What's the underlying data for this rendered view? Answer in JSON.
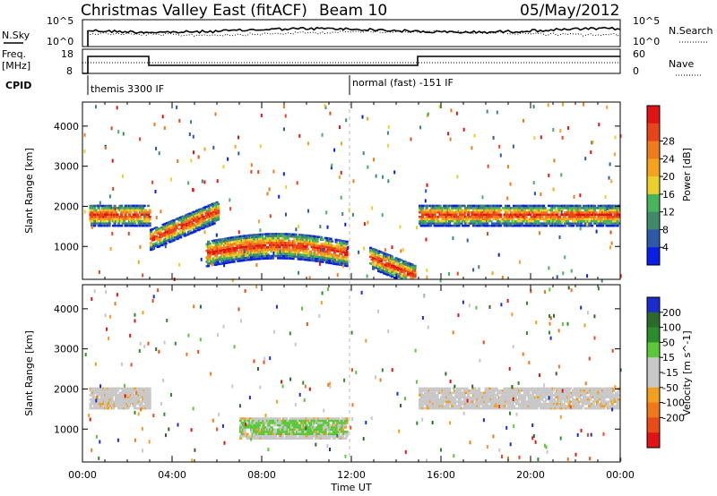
{
  "header": {
    "title": "Christmas Valley East (fitACF)",
    "beam": "Beam 10",
    "date": "05/May/2012"
  },
  "noise_panel": {
    "left_label": "N.Sky",
    "right_label": "N.Search",
    "left_ticks": [
      "10^5",
      "10^0"
    ],
    "right_ticks": [
      "10^5",
      "10^0"
    ]
  },
  "freq_panel": {
    "left_label_1": "Freq.",
    "left_label_2": "[MHz]",
    "right_label": "Nave",
    "left_ticks": [
      "18",
      "8"
    ],
    "right_ticks": [
      "60",
      "0"
    ]
  },
  "cpid": {
    "label": "CPID",
    "modes": [
      "themis 3300 IF",
      "normal (fast) -151 IF"
    ]
  },
  "x_axis": {
    "label": "Time UT",
    "ticks": [
      "00:00",
      "04:00",
      "08:00",
      "12:00",
      "16:00",
      "20:00",
      "00:00"
    ]
  },
  "chart_data": [
    {
      "type": "heatmap",
      "name": "power-panel",
      "ylabel": "Slant Range [km]",
      "yticks": [
        1000,
        2000,
        3000,
        4000
      ],
      "ylim": [
        180,
        4600
      ],
      "xlim": [
        0,
        24
      ],
      "colorbar": {
        "label": "Power [dB]",
        "ticks": [
          "4",
          "8",
          "12",
          "16",
          "20",
          "24",
          "28"
        ],
        "colors": [
          "#0a1ee6",
          "#2d5aa8",
          "#3f8a6a",
          "#47b35a",
          "#e9d02a",
          "#f5a21f",
          "#f07a1c",
          "#e8441a",
          "#e01414"
        ]
      },
      "features": [
        {
          "time_start": 0.3,
          "time_end": 3.0,
          "range_km": 1750,
          "power_db": 24
        },
        {
          "time_start": 3.0,
          "time_end": 6.0,
          "range_km": 1150,
          "power_db": 26
        },
        {
          "time_start": 5.5,
          "time_end": 11.8,
          "range_km": 850,
          "power_db": 30
        },
        {
          "time_start": 12.8,
          "time_end": 14.8,
          "range_km": 450,
          "power_db": 28
        },
        {
          "time_start": 15.0,
          "time_end": 23.9,
          "range_km": 1750,
          "power_db": 22
        }
      ]
    },
    {
      "type": "heatmap",
      "name": "velocity-panel",
      "ylabel": "Slant Range [km]",
      "yticks": [
        1000,
        2000,
        3000,
        4000
      ],
      "ylim": [
        180,
        4600
      ],
      "xlim": [
        0,
        24
      ],
      "colorbar": {
        "label": "Velocity [m s^-1]",
        "ticks": [
          "200",
          "100",
          "50",
          "15",
          "-15",
          "-50",
          "-100",
          "-200"
        ],
        "colors": [
          "#1a2dcc",
          "#2a6a2a",
          "#2c8c2c",
          "#5ac83a",
          "#c8c8c8",
          "#c8c8c8",
          "#f0a01e",
          "#f07818",
          "#e84a18",
          "#e01414"
        ]
      },
      "features": [
        {
          "time_start": 0.3,
          "time_end": 3.0,
          "range_km": 1750,
          "velocity": 0
        },
        {
          "time_start": 7.0,
          "time_end": 11.8,
          "range_km": 1000,
          "velocity": 60
        },
        {
          "time_start": 15.0,
          "time_end": 23.9,
          "range_km": 1750,
          "velocity": 0
        }
      ]
    }
  ]
}
